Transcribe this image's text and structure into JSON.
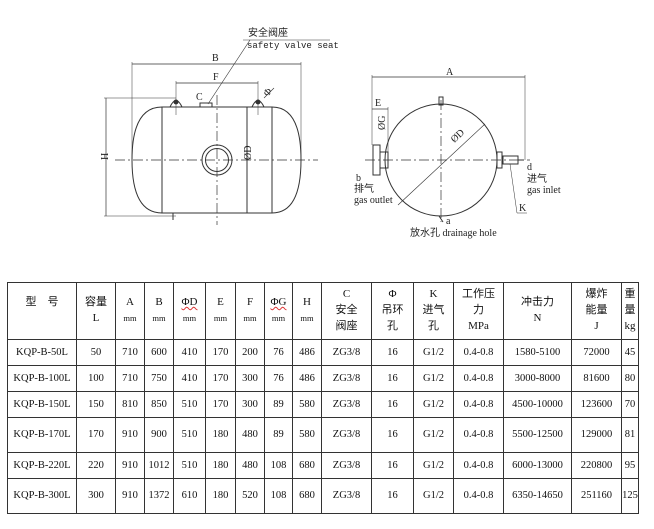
{
  "drawing": {
    "safety_valve_cn": "安全阀座",
    "safety_valve_en": "safety valve seat",
    "label_B": "B",
    "label_F": "F",
    "label_C": "C",
    "label_phi": "Φ",
    "label_H": "H",
    "label_OD_side": "ØD",
    "label_A": "A",
    "label_E": "E",
    "label_OG": "ØG",
    "label_OD_end": "ØD",
    "label_b": "b",
    "outlet_cn": "排气",
    "outlet_en": "gas  outlet",
    "label_a": "a",
    "drain": "放水孔  drainage hole",
    "label_d": "d",
    "inlet_cn": "进气",
    "inlet_en": "gas  inlet",
    "label_K": "K"
  },
  "table": {
    "headers": [
      {
        "l1": "型　号",
        "l2": "",
        "l3": ""
      },
      {
        "l1": "容量",
        "l2": "L",
        "l3": ""
      },
      {
        "l1": "A",
        "l2": "mm",
        "l3": ""
      },
      {
        "l1": "B",
        "l2": "mm",
        "l3": ""
      },
      {
        "l1": "ΦD",
        "l2": "mm",
        "l3": ""
      },
      {
        "l1": "E",
        "l2": "mm",
        "l3": ""
      },
      {
        "l1": "F",
        "l2": "mm",
        "l3": ""
      },
      {
        "l1": "ΦG",
        "l2": "mm",
        "l3": ""
      },
      {
        "l1": "H",
        "l2": "mm",
        "l3": ""
      },
      {
        "l1": "C",
        "l2": "安全",
        "l3": "阀座"
      },
      {
        "l1": "Φ",
        "l2": "吊环",
        "l3": "孔"
      },
      {
        "l1": "K",
        "l2": "进气",
        "l3": "孔"
      },
      {
        "l1": "工作压",
        "l2": "力",
        "l3": "MPa"
      },
      {
        "l1": "冲击力",
        "l2": "N",
        "l3": ""
      },
      {
        "l1": "爆炸",
        "l2": "能量",
        "l3": "J"
      },
      {
        "l1": "重",
        "l2": "量",
        "l3": "kg"
      }
    ],
    "rows": [
      [
        "KQP-B-50L",
        "50",
        "710",
        "600",
        "410",
        "170",
        "200",
        "76",
        "486",
        "ZG3/8",
        "16",
        "G1/2",
        "0.4-0.8",
        "1580-5100",
        "72000",
        "45"
      ],
      [
        "KQP-B-100L",
        "100",
        "710",
        "750",
        "410",
        "170",
        "300",
        "76",
        "486",
        "ZG3/8",
        "16",
        "G1/2",
        "0.4-0.8",
        "3000-8000",
        "81600",
        "80"
      ],
      [
        "KQP-B-150L",
        "150",
        "810",
        "850",
        "510",
        "170",
        "300",
        "89",
        "580",
        "ZG3/8",
        "16",
        "G1/2",
        "0.4-0.8",
        "4500-10000",
        "123600",
        "70"
      ],
      [
        "KQP-B-170L",
        "170",
        "910",
        "900",
        "510",
        "180",
        "480",
        "89",
        "580",
        "ZG3/8",
        "16",
        "G1/2",
        "0.4-0.8",
        "5500-12500",
        "129000",
        "81"
      ],
      [
        "KQP-B-220L",
        "220",
        "910",
        "1012",
        "510",
        "180",
        "480",
        "108",
        "680",
        "ZG3/8",
        "16",
        "G1/2",
        "0.4-0.8",
        "6000-13000",
        "220800",
        "95"
      ],
      [
        "KQP-B-300L",
        "300",
        "910",
        "1372",
        "610",
        "180",
        "520",
        "108",
        "680",
        "ZG3/8",
        "16",
        "G1/2",
        "0.4-0.8",
        "6350-14650",
        "251160",
        "125"
      ]
    ]
  }
}
